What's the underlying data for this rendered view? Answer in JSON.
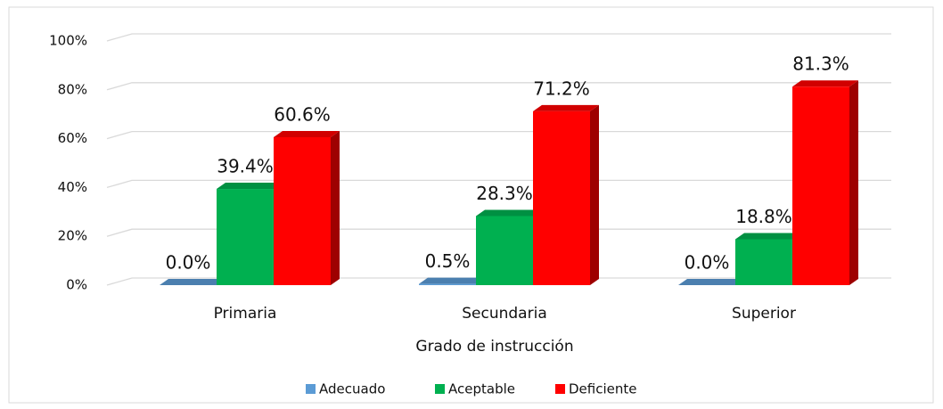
{
  "chart_data": {
    "type": "bar3d",
    "xlabel": "Grado de instrucción",
    "categories": [
      "Primaria",
      "Secundaria",
      "Superior"
    ],
    "series": [
      {
        "name": "Adecuado",
        "color": "#5b9bd5",
        "values": [
          0.0,
          0.5,
          0.0
        ],
        "value_labels": [
          "0.0%",
          "0.5%",
          "0.0%"
        ]
      },
      {
        "name": "Aceptable",
        "color": "#00b050",
        "values": [
          39.4,
          28.3,
          18.8
        ],
        "value_labels": [
          "39.4%",
          "28.3%",
          "18.8%"
        ]
      },
      {
        "name": "Deficiente",
        "color": "#ff0000",
        "values": [
          60.6,
          71.2,
          81.3
        ],
        "value_labels": [
          "60.6%",
          "71.2%",
          "81.3%"
        ]
      }
    ],
    "ylim": [
      0,
      100
    ],
    "yticks": [
      {
        "value": 0,
        "label": "0%"
      },
      {
        "value": 20,
        "label": "20%"
      },
      {
        "value": 40,
        "label": "40%"
      },
      {
        "value": 60,
        "label": "60%"
      },
      {
        "value": 80,
        "label": "80%"
      },
      {
        "value": 100,
        "label": "100%"
      }
    ],
    "grid": true,
    "legend": "bottom"
  }
}
